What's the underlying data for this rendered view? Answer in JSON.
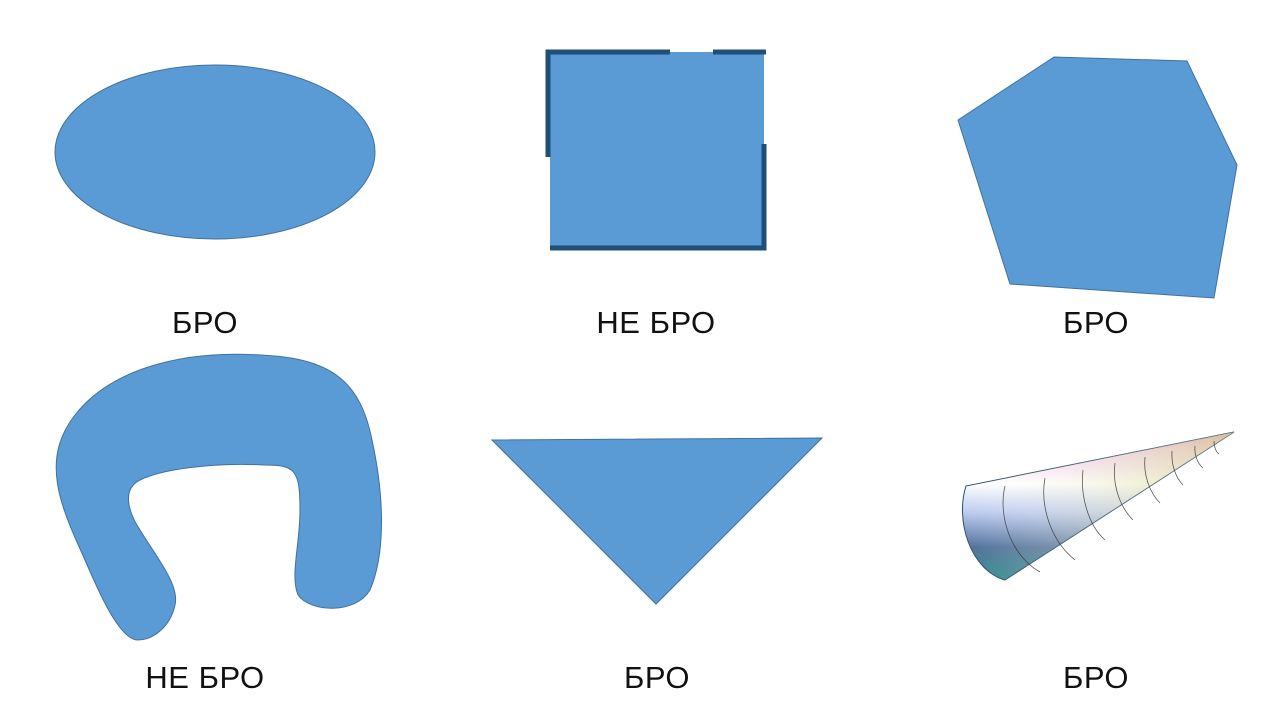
{
  "colors": {
    "shape_fill": "#5b9bd5",
    "shape_stroke": "#41719c",
    "dark_border": "#1f4e79"
  },
  "items": [
    {
      "shape": "ellipse-shape",
      "label": "БРО"
    },
    {
      "shape": "open-square-shape",
      "label": "НЕ БРО"
    },
    {
      "shape": "pentagon-shape",
      "label": "БРО"
    },
    {
      "shape": "horseshoe-shape",
      "label": "НЕ БРО"
    },
    {
      "shape": "triangle-shape",
      "label": "БРО"
    },
    {
      "shape": "cone-shape",
      "label": "БРО"
    }
  ]
}
